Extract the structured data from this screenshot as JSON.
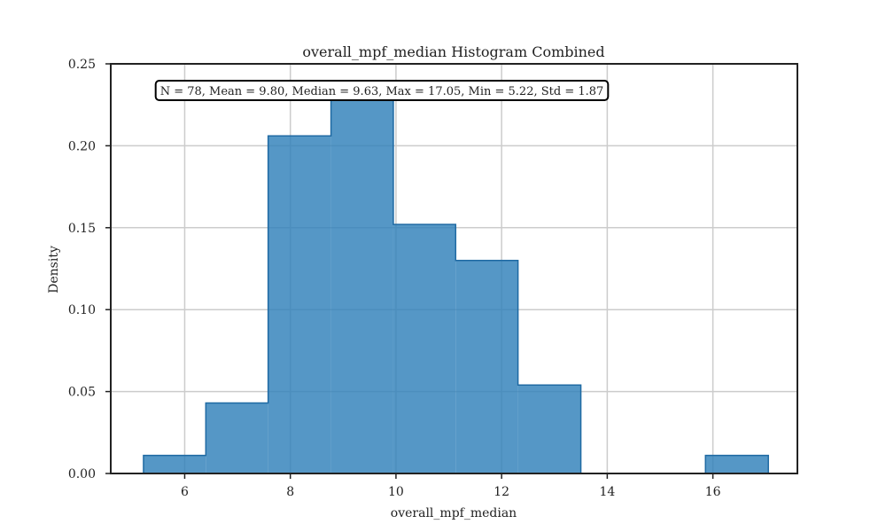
{
  "chart_data": {
    "type": "bar",
    "subtype": "histogram-step",
    "title": "overall_mpf_median Histogram Combined",
    "xlabel": "overall_mpf_median",
    "ylabel": "Density",
    "stats_text": "N = 78, Mean = 9.80, Median = 9.63, Max = 17.05, Min = 5.22, Std = 1.87",
    "xlim": [
      4.6,
      17.6
    ],
    "ylim": [
      0,
      0.25
    ],
    "x_ticks": [
      6,
      8,
      10,
      12,
      14,
      16
    ],
    "y_ticks": [
      0.0,
      0.05,
      0.1,
      0.15,
      0.2,
      0.25
    ],
    "y_tick_labels": [
      "0.00",
      "0.05",
      "0.10",
      "0.15",
      "0.20",
      "0.25"
    ],
    "grid": true,
    "bar_color": "#2f80ba",
    "edge_color": "#1f6aa3",
    "bins": [
      {
        "x0": 5.22,
        "x1": 6.4,
        "density": 0.011
      },
      {
        "x0": 6.4,
        "x1": 7.58,
        "density": 0.043
      },
      {
        "x0": 7.58,
        "x1": 8.77,
        "density": 0.206
      },
      {
        "x0": 8.77,
        "x1": 9.95,
        "density": 0.229
      },
      {
        "x0": 9.95,
        "x1": 11.13,
        "density": 0.152
      },
      {
        "x0": 11.13,
        "x1": 12.31,
        "density": 0.13
      },
      {
        "x0": 12.31,
        "x1": 13.5,
        "density": 0.054
      },
      {
        "x0": 13.5,
        "x1": 14.68,
        "density": 0.0
      },
      {
        "x0": 14.68,
        "x1": 15.86,
        "density": 0.0
      },
      {
        "x0": 15.86,
        "x1": 17.05,
        "density": 0.011
      }
    ]
  }
}
